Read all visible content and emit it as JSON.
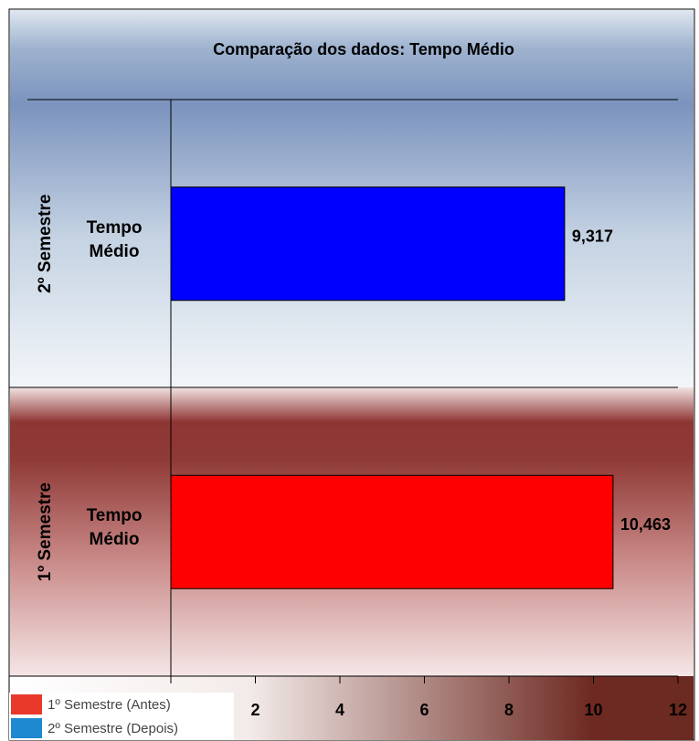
{
  "chart_data": {
    "type": "bar",
    "orientation": "horizontal",
    "title": "Comparação dos dados: Tempo Médio",
    "categories": [
      "Tempo Médio"
    ],
    "series": [
      {
        "name": "1º Semestre (Antes)",
        "group": "1º Semestre",
        "color": "#ff0000",
        "legend_color": "#e8392a",
        "values": [
          10.463
        ],
        "value_labels": [
          "10,463"
        ]
      },
      {
        "name": "2º Semestre (Depois)",
        "group": "2º Semestre",
        "color": "#0000ff",
        "legend_color": "#1e88d0",
        "values": [
          9.317
        ],
        "value_labels": [
          "9,317"
        ]
      }
    ],
    "xlim": [
      0,
      12
    ],
    "xticks": [
      0,
      2,
      4,
      6,
      8,
      10,
      12
    ],
    "legend": "bottom-left"
  }
}
